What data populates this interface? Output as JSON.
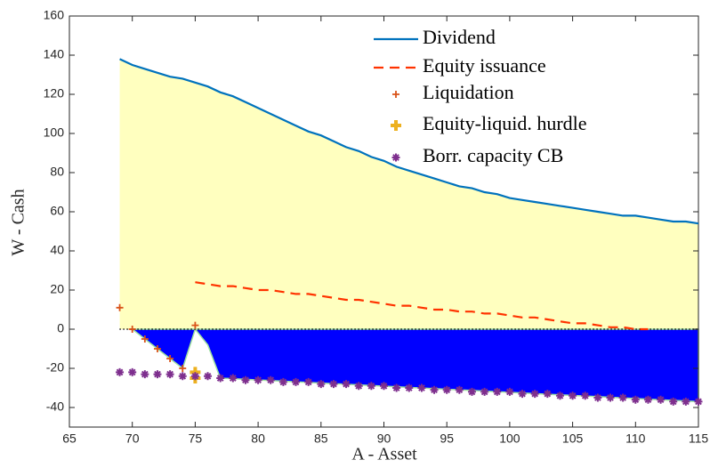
{
  "chart_data": {
    "type": "line",
    "xlabel": "A - Asset",
    "ylabel": "W - Cash",
    "xlim": [
      65,
      115
    ],
    "xticks": [
      65,
      70,
      75,
      80,
      85,
      90,
      95,
      100,
      105,
      110,
      115
    ],
    "ylim": [
      -50,
      160
    ],
    "yticks": [
      -40,
      -20,
      0,
      20,
      40,
      60,
      80,
      100,
      120,
      140,
      160
    ],
    "series": [
      {
        "name": "Dividend",
        "color": "#0072bd",
        "style": "solid",
        "fill": "#ffffbf",
        "x": [
          69,
          70,
          71,
          72,
          73,
          74,
          75,
          76,
          77,
          78,
          79,
          80,
          81,
          82,
          83,
          84,
          85,
          86,
          87,
          88,
          89,
          90,
          91,
          92,
          93,
          94,
          95,
          96,
          97,
          98,
          99,
          100,
          101,
          102,
          103,
          104,
          105,
          106,
          107,
          108,
          109,
          110,
          111,
          112,
          113,
          114,
          115
        ],
        "values": [
          138,
          135,
          133,
          131,
          129,
          128,
          126,
          124,
          121,
          119,
          116,
          113,
          110,
          107,
          104,
          101,
          99,
          96,
          93,
          91,
          88,
          86,
          83,
          81,
          79,
          77,
          75,
          73,
          72,
          70,
          69,
          67,
          66,
          65,
          64,
          63,
          62,
          61,
          60,
          59,
          58,
          58,
          57,
          56,
          55,
          55,
          54
        ]
      },
      {
        "name": "Equity issuance",
        "color": "#ff3300",
        "style": "dashed",
        "x": [
          75,
          76,
          77,
          78,
          79,
          80,
          81,
          82,
          83,
          84,
          85,
          86,
          87,
          88,
          89,
          90,
          91,
          92,
          93,
          94,
          95,
          96,
          97,
          98,
          99,
          100,
          101,
          102,
          103,
          104,
          105,
          106,
          107,
          108,
          109,
          110,
          111
        ],
        "values": [
          24,
          23,
          22,
          22,
          21,
          20,
          20,
          19,
          18,
          18,
          17,
          16,
          15,
          15,
          14,
          13,
          12,
          12,
          11,
          10,
          10,
          9,
          9,
          8,
          8,
          7,
          6,
          6,
          5,
          4,
          3,
          3,
          2,
          1,
          1,
          0,
          0
        ]
      },
      {
        "name": "Liquidation",
        "color": "#d95319",
        "style": "plus",
        "x": [
          69,
          70,
          71,
          72,
          73,
          74,
          75
        ],
        "values": [
          11,
          0,
          -5,
          -10,
          -15,
          -20,
          2
        ]
      },
      {
        "name": "Equity-liquid. hurdle",
        "color": "#edb120",
        "style": "bigplus",
        "x": [
          75,
          75
        ],
        "values": [
          -22,
          -25
        ]
      },
      {
        "name": "Borr. capacity CB",
        "color": "#7e2f8e",
        "style": "star",
        "x": [
          69,
          70,
          71,
          72,
          73,
          74,
          75,
          76,
          77,
          78,
          79,
          80,
          81,
          82,
          83,
          84,
          85,
          86,
          87,
          88,
          89,
          90,
          91,
          92,
          93,
          94,
          95,
          96,
          97,
          98,
          99,
          100,
          101,
          102,
          103,
          104,
          105,
          106,
          107,
          108,
          109,
          110,
          111,
          112,
          113,
          114,
          115
        ],
        "values": [
          -22,
          -22,
          -23,
          -23,
          -23,
          -24,
          -24,
          -24,
          -25,
          -25,
          -26,
          -26,
          -26,
          -27,
          -27,
          -27,
          -28,
          -28,
          -28,
          -29,
          -29,
          -29,
          -30,
          -30,
          -30,
          -31,
          -31,
          -31,
          -32,
          -32,
          -32,
          -32,
          -33,
          -33,
          -33,
          -34,
          -34,
          -34,
          -35,
          -35,
          -35,
          -36,
          -36,
          -36,
          -37,
          -37,
          -37
        ]
      }
    ],
    "areas": [
      {
        "color": "#0000ff",
        "edge": "#9fe0a0",
        "x": [
          70,
          74,
          75,
          76,
          77,
          115
        ],
        "values": [
          0,
          -20,
          0,
          -8,
          -25,
          -37
        ]
      }
    ]
  }
}
